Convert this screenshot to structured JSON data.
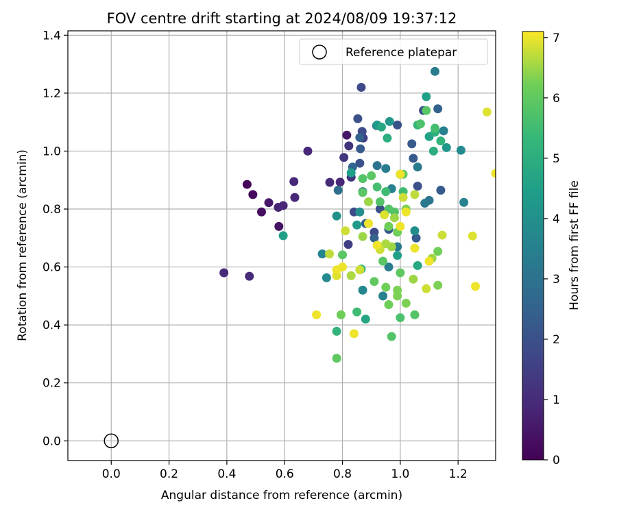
{
  "chart_data": {
    "type": "scatter",
    "title": "FOV centre drift starting at 2024/08/09 19:37:12",
    "xlabel": "Angular distance from reference (arcmin)",
    "ylabel": "Rotation from reference (arcmin)",
    "xlim": [
      -0.15,
      1.33
    ],
    "ylim": [
      -0.068,
      1.415
    ],
    "xticks": [
      0.0,
      0.2,
      0.4,
      0.6,
      0.8,
      1.0,
      1.2
    ],
    "xtick_labels": [
      "0.0",
      "0.2",
      "0.4",
      "0.6",
      "0.8",
      "1.0",
      "1.2"
    ],
    "yticks": [
      0.0,
      0.2,
      0.4,
      0.6,
      0.8,
      1.0,
      1.2,
      1.4
    ],
    "ytick_labels": [
      "0.0",
      "0.2",
      "0.4",
      "0.6",
      "0.8",
      "1.0",
      "1.2",
      "1.4"
    ],
    "grid": true,
    "colorbar": {
      "label": "Hours from first FF file",
      "colormap": "viridis",
      "range": [
        0,
        7.1
      ],
      "ticks": [
        0,
        1,
        2,
        3,
        4,
        5,
        6,
        7
      ],
      "tick_labels": [
        "0",
        "1",
        "2",
        "3",
        "4",
        "5",
        "6",
        "7"
      ]
    },
    "legend": {
      "placement": "top-right",
      "entries": [
        {
          "label": "Reference platepar",
          "marker": "hollow-circle"
        }
      ]
    },
    "reference_point": {
      "x": 0.0,
      "y": 0.0
    },
    "series": [
      {
        "points": [
          [
            0.47,
            0.885,
            0.1
          ],
          [
            0.49,
            0.85,
            0.2
          ],
          [
            0.52,
            0.79,
            0.3
          ],
          [
            0.545,
            0.822,
            0.5
          ],
          [
            0.58,
            0.74,
            0.4
          ],
          [
            0.578,
            0.806,
            0.8
          ],
          [
            0.595,
            0.812,
            0.9
          ],
          [
            0.632,
            0.895,
            0.9
          ],
          [
            0.635,
            0.84,
            0.9
          ],
          [
            0.68,
            1.0,
            0.9
          ],
          [
            0.39,
            0.58,
            1.0
          ],
          [
            0.478,
            0.568,
            1.0
          ],
          [
            0.756,
            0.892,
            1.0
          ],
          [
            0.792,
            0.893,
            0.9
          ],
          [
            0.815,
            1.055,
            0.5
          ],
          [
            0.822,
            1.018,
            1.2
          ],
          [
            0.83,
            0.91,
            1.2
          ],
          [
            0.805,
            0.978,
            1.3
          ],
          [
            0.865,
            1.22,
            1.8
          ],
          [
            0.853,
            1.112,
            2.0
          ],
          [
            0.868,
            1.068,
            1.9
          ],
          [
            0.872,
            1.045,
            1.5
          ],
          [
            0.86,
            1.047,
            2.5
          ],
          [
            0.862,
            1.008,
            2.3
          ],
          [
            0.86,
            0.958,
            2.0
          ],
          [
            0.84,
            0.79,
            1.8
          ],
          [
            0.82,
            0.678,
            1.5
          ],
          [
            0.835,
            0.945,
            2.6
          ],
          [
            0.918,
            1.088,
            2.6
          ],
          [
            0.99,
            1.09,
            2.0
          ],
          [
            1.04,
            1.025,
            2.3
          ],
          [
            1.045,
            0.975,
            2.3
          ],
          [
            1.08,
            1.14,
            1.9
          ],
          [
            1.13,
            1.146,
            2.5
          ],
          [
            1.14,
            0.865,
            2.3
          ],
          [
            1.06,
            0.879,
            2.0
          ],
          [
            1.055,
            0.7,
            2.3
          ],
          [
            0.88,
            0.75,
            2.5
          ],
          [
            0.93,
            0.8,
            2.0
          ],
          [
            0.96,
            0.73,
            2.2
          ],
          [
            0.91,
            0.72,
            1.8
          ],
          [
            0.87,
            0.86,
            2.8
          ],
          [
            0.785,
            0.865,
            2.9
          ],
          [
            0.91,
            0.7,
            2.5
          ],
          [
            1.12,
            1.275,
            3.3
          ],
          [
            1.15,
            1.07,
            3.5
          ],
          [
            1.21,
            1.003,
            3.8
          ],
          [
            1.22,
            0.823,
            3.5
          ],
          [
            1.1,
            0.83,
            3.1
          ],
          [
            1.085,
            0.82,
            3.2
          ],
          [
            1.06,
            0.945,
            3.3
          ],
          [
            0.92,
            0.95,
            3.0
          ],
          [
            0.95,
            0.94,
            3.3
          ],
          [
            0.97,
            0.87,
            3.5
          ],
          [
            1.0,
            0.92,
            3.6
          ],
          [
            0.99,
            0.67,
            3.2
          ],
          [
            0.96,
            0.6,
            3.4
          ],
          [
            0.94,
            0.5,
            3.5
          ],
          [
            0.87,
            0.52,
            3.7
          ],
          [
            0.745,
            0.563,
            3.8
          ],
          [
            0.73,
            0.645,
            3.6
          ],
          [
            0.78,
            0.776,
            4.0
          ],
          [
            0.86,
            0.79,
            3.9
          ],
          [
            0.85,
            0.745,
            4.3
          ],
          [
            0.83,
            0.925,
            4.5
          ],
          [
            0.92,
            1.09,
            4.3
          ],
          [
            0.935,
            1.083,
            4.8
          ],
          [
            0.963,
            1.102,
            4.2
          ],
          [
            0.955,
            1.045,
            5.0
          ],
          [
            1.09,
            1.188,
            4.5
          ],
          [
            1.1,
            1.05,
            4.6
          ],
          [
            1.12,
            1.065,
            5.1
          ],
          [
            1.115,
            1.0,
            5.0
          ],
          [
            1.16,
            1.012,
            4.2
          ],
          [
            1.05,
            0.725,
            3.9
          ],
          [
            0.99,
            0.64,
            4.5
          ],
          [
            0.595,
            0.708,
            4.5
          ],
          [
            0.78,
            0.378,
            5.2
          ],
          [
            0.88,
            0.42,
            4.7
          ],
          [
            0.85,
            0.445,
            5.5
          ],
          [
            0.795,
            0.435,
            6.2
          ],
          [
            0.865,
            0.593,
            5.3
          ],
          [
            0.96,
            0.47,
            6.2
          ],
          [
            0.97,
            0.36,
            5.8
          ],
          [
            0.99,
            0.5,
            6.3
          ],
          [
            1.0,
            0.425,
            5.7
          ],
          [
            1.045,
            0.558,
            6.5
          ],
          [
            1.05,
            0.435,
            5.8
          ],
          [
            1.06,
            0.605,
            4.8
          ],
          [
            1.13,
            0.537,
            6.3
          ],
          [
            1.13,
            0.654,
            6.2
          ],
          [
            1.12,
            1.079,
            5.6
          ],
          [
            1.14,
            1.035,
            5.2
          ],
          [
            1.09,
            1.14,
            5.9
          ],
          [
            1.07,
            1.094,
            5.7
          ],
          [
            1.06,
            1.09,
            5.3
          ],
          [
            1.01,
            0.92,
            6.0
          ],
          [
            0.98,
            0.79,
            5.8
          ],
          [
            1.01,
            0.86,
            5.5
          ],
          [
            1.02,
            0.8,
            6.3
          ],
          [
            0.8,
            0.642,
            5.9
          ],
          [
            0.87,
            0.905,
            5.8
          ],
          [
            0.87,
            0.857,
            5.9
          ],
          [
            0.89,
            0.825,
            6.5
          ],
          [
            0.9,
            0.915,
            5.9
          ],
          [
            0.92,
            0.876,
            5.6
          ],
          [
            0.93,
            0.825,
            5.8
          ],
          [
            0.95,
            0.86,
            5.5
          ],
          [
            0.96,
            0.8,
            5.8
          ],
          [
            0.96,
            0.74,
            6.2
          ],
          [
            0.98,
            0.77,
            6.5
          ],
          [
            0.99,
            0.72,
            6.2
          ],
          [
            0.94,
            0.62,
            5.9
          ],
          [
            0.95,
            0.53,
            6.2
          ],
          [
            0.91,
            0.55,
            6.0
          ],
          [
            0.93,
            0.67,
            6.5
          ],
          [
            1.0,
            0.58,
            6.0
          ],
          [
            1.02,
            0.475,
            6.3
          ],
          [
            0.78,
            0.285,
            6.0
          ],
          [
            0.86,
            0.59,
            6.8
          ],
          [
            0.83,
            0.57,
            6.6
          ],
          [
            0.8,
            0.6,
            7.0
          ],
          [
            0.78,
            0.59,
            7.0
          ],
          [
            0.78,
            0.57,
            6.9
          ],
          [
            0.755,
            0.645,
            6.7
          ],
          [
            0.71,
            0.435,
            7.0
          ],
          [
            0.84,
            0.37,
            7.0
          ],
          [
            0.81,
            0.725,
            6.8
          ],
          [
            0.87,
            0.705,
            6.5
          ],
          [
            0.89,
            0.75,
            7.0
          ],
          [
            0.92,
            0.675,
            7.0
          ],
          [
            0.93,
            0.66,
            6.8
          ],
          [
            0.95,
            0.68,
            6.6
          ],
          [
            0.97,
            0.67,
            6.5
          ],
          [
            0.99,
            0.52,
            6.3
          ],
          [
            1.0,
            0.74,
            7.0
          ],
          [
            1.01,
            0.84,
            6.8
          ],
          [
            1.02,
            0.79,
            7.0
          ],
          [
            1.05,
            0.665,
            7.0
          ],
          [
            1.09,
            0.525,
            6.8
          ],
          [
            1.1,
            0.62,
            7.0
          ],
          [
            1.11,
            0.63,
            6.5
          ],
          [
            1.145,
            0.71,
            6.8
          ],
          [
            1.25,
            0.707,
            6.9
          ],
          [
            1.26,
            0.533,
            7.0
          ],
          [
            1.3,
            1.135,
            6.9
          ],
          [
            1.33,
            0.923,
            7.0
          ],
          [
            1.0,
            0.92,
            7.0
          ],
          [
            1.05,
            0.85,
            6.7
          ],
          [
            0.945,
            0.78,
            6.9
          ]
        ]
      }
    ]
  }
}
